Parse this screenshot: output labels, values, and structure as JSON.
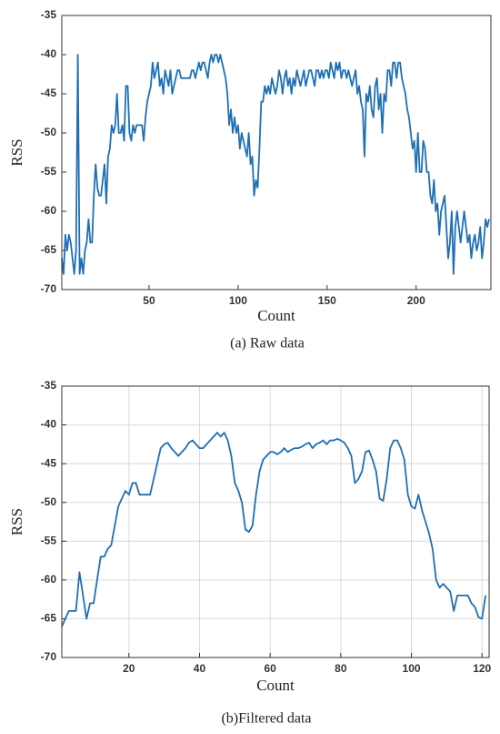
{
  "chart_data": [
    {
      "type": "line",
      "caption": "(a) Raw data",
      "xlabel": "Count",
      "ylabel": "RSS",
      "color": "#1f6fb4",
      "grid": false,
      "xlim": [
        1,
        242
      ],
      "xticks": [
        50,
        100,
        150,
        200
      ],
      "ylim": [
        -70,
        -35
      ],
      "yticks": [
        -70,
        -65,
        -60,
        -55,
        -50,
        -45,
        -40,
        -35
      ],
      "x": [
        1,
        2,
        3,
        4,
        5,
        6,
        7,
        8,
        9,
        10,
        11,
        12,
        13,
        14,
        15,
        16,
        17,
        18,
        19,
        20,
        21,
        22,
        23,
        24,
        25,
        26,
        27,
        28,
        29,
        30,
        31,
        32,
        33,
        34,
        35,
        36,
        37,
        38,
        39,
        40,
        41,
        42,
        43,
        44,
        45,
        46,
        47,
        48,
        49,
        50,
        51,
        52,
        53,
        54,
        55,
        56,
        57,
        58,
        59,
        60,
        61,
        62,
        63,
        64,
        65,
        66,
        67,
        68,
        69,
        70,
        71,
        72,
        73,
        74,
        75,
        76,
        77,
        78,
        79,
        80,
        81,
        82,
        83,
        84,
        85,
        86,
        87,
        88,
        89,
        90,
        91,
        92,
        93,
        94,
        95,
        96,
        97,
        98,
        99,
        100,
        101,
        102,
        103,
        104,
        105,
        106,
        107,
        108,
        109,
        110,
        111,
        112,
        113,
        114,
        115,
        116,
        117,
        118,
        119,
        120,
        121,
        122,
        123,
        124,
        125,
        126,
        127,
        128,
        129,
        130,
        131,
        132,
        133,
        134,
        135,
        136,
        137,
        138,
        139,
        140,
        141,
        142,
        143,
        144,
        145,
        146,
        147,
        148,
        149,
        150,
        151,
        152,
        153,
        154,
        155,
        156,
        157,
        158,
        159,
        160,
        161,
        162,
        163,
        164,
        165,
        166,
        167,
        168,
        169,
        170,
        171,
        172,
        173,
        174,
        175,
        176,
        177,
        178,
        179,
        180,
        181,
        182,
        183,
        184,
        185,
        186,
        187,
        188,
        189,
        190,
        191,
        192,
        193,
        194,
        195,
        196,
        197,
        198,
        199,
        200,
        201,
        202,
        203,
        204,
        205,
        206,
        207,
        208,
        209,
        210,
        211,
        212,
        213,
        214,
        215,
        216,
        217,
        218,
        219,
        220,
        221,
        222,
        223,
        224,
        225,
        226,
        227,
        228,
        229,
        230,
        231,
        232,
        233,
        234,
        235,
        236,
        237,
        238,
        239,
        240,
        241
      ],
      "values": [
        -66,
        -68,
        -63,
        -65,
        -63,
        -64,
        -66,
        -68,
        -65,
        -40,
        -68,
        -66,
        -68,
        -65,
        -64,
        -61,
        -64,
        -64,
        -58,
        -54,
        -57,
        -58,
        -58,
        -56,
        -54,
        -59,
        -53,
        -52,
        -49,
        -50,
        -49,
        -45,
        -50,
        -50,
        -49,
        -51,
        -44,
        -44,
        -50,
        -51,
        -49,
        -50,
        -49,
        -49,
        -49,
        -49,
        -51,
        -48,
        -46,
        -45,
        -44,
        -41,
        -43,
        -42,
        -41,
        -44,
        -43,
        -45,
        -42,
        -43,
        -44,
        -42,
        -45,
        -44,
        -43,
        -42,
        -42,
        -43,
        -43,
        -43,
        -43,
        -43,
        -43,
        -42,
        -42,
        -43,
        -42,
        -41,
        -42,
        -41,
        -41,
        -42,
        -43,
        -41,
        -40,
        -41,
        -40,
        -40,
        -41,
        -40,
        -41,
        -42,
        -43,
        -45,
        -49,
        -47,
        -50,
        -48,
        -50,
        -49,
        -52,
        -50,
        -51,
        -52,
        -53,
        -50,
        -54,
        -53,
        -58,
        -56,
        -57,
        -52,
        -46,
        -46,
        -44,
        -45,
        -44,
        -45,
        -43,
        -44,
        -45,
        -44,
        -42,
        -43,
        -45,
        -43,
        -42,
        -44,
        -43,
        -45,
        -43,
        -44,
        -42,
        -43,
        -44,
        -43,
        -42,
        -44,
        -43,
        -42,
        -42,
        -43,
        -44,
        -42,
        -42,
        -43,
        -42,
        -43,
        -42,
        -42,
        -43,
        -41,
        -42,
        -43,
        -41,
        -42,
        -41,
        -43,
        -42,
        -42,
        -43,
        -42,
        -43,
        -44,
        -43,
        -42,
        -45,
        -44,
        -46,
        -47,
        -53,
        -45,
        -46,
        -44,
        -47,
        -48,
        -44,
        -43,
        -47,
        -45,
        -50,
        -45,
        -46,
        -42,
        -42,
        -44,
        -41,
        -41,
        -43,
        -41,
        -41,
        -43,
        -44,
        -45,
        -47,
        -48,
        -50,
        -52,
        -51,
        -55,
        -50,
        -55,
        -55,
        -51,
        -52,
        -55,
        -55,
        -58,
        -59,
        -56,
        -60,
        -59,
        -63,
        -60,
        -59,
        -58,
        -62,
        -66,
        -64,
        -60,
        -68,
        -62,
        -60,
        -62,
        -64,
        -62,
        -60,
        -62,
        -64,
        -63,
        -66,
        -64,
        -63,
        -65,
        -64,
        -62,
        -66,
        -64,
        -61,
        -62,
        -61
      ]
    },
    {
      "type": "line",
      "caption": "(b)Filtered data",
      "xlabel": "Count",
      "ylabel": "RSS",
      "color": "#1f6fb4",
      "grid": true,
      "xlim": [
        1,
        122
      ],
      "xticks": [
        20,
        40,
        60,
        80,
        100,
        120
      ],
      "ylim": [
        -70,
        -35
      ],
      "yticks": [
        -70,
        -65,
        -60,
        -55,
        -50,
        -45,
        -40,
        -35
      ],
      "x": [
        1,
        2,
        3,
        4,
        5,
        6,
        7,
        8,
        9,
        10,
        11,
        12,
        13,
        14,
        15,
        16,
        17,
        18,
        19,
        20,
        21,
        22,
        23,
        24,
        25,
        26,
        27,
        28,
        29,
        30,
        31,
        32,
        33,
        34,
        35,
        36,
        37,
        38,
        39,
        40,
        41,
        42,
        43,
        44,
        45,
        46,
        47,
        48,
        49,
        50,
        51,
        52,
        53,
        54,
        55,
        56,
        57,
        58,
        59,
        60,
        61,
        62,
        63,
        64,
        65,
        66,
        67,
        68,
        69,
        70,
        71,
        72,
        73,
        74,
        75,
        76,
        77,
        78,
        79,
        80,
        81,
        82,
        83,
        84,
        85,
        86,
        87,
        88,
        89,
        90,
        91,
        92,
        93,
        94,
        95,
        96,
        97,
        98,
        99,
        100,
        101,
        102,
        103,
        104,
        105,
        106,
        107,
        108,
        109,
        110,
        111,
        112,
        113,
        114,
        115,
        116,
        117,
        118,
        119,
        120,
        121
      ],
      "values": [
        -66,
        -65,
        -64,
        -64,
        -64,
        -59,
        -62,
        -65,
        -63,
        -63,
        -60,
        -57,
        -57,
        -56,
        -55.5,
        -53,
        -50.5,
        -49.5,
        -48.5,
        -49,
        -47.5,
        -47.5,
        -49,
        -49,
        -49,
        -49,
        -47,
        -45,
        -43,
        -42.5,
        -42.3,
        -43,
        -43.5,
        -44,
        -43.5,
        -43,
        -42.3,
        -42,
        -42.5,
        -43,
        -43,
        -42.5,
        -42,
        -41.5,
        -41,
        -41.5,
        -41,
        -42,
        -44,
        -47.5,
        -48.5,
        -50,
        -53.5,
        -53.8,
        -53,
        -49,
        -46,
        -44.5,
        -44,
        -43.5,
        -43.5,
        -43.8,
        -43.5,
        -43,
        -43.5,
        -43.2,
        -43,
        -43,
        -42.8,
        -42.5,
        -42.3,
        -43,
        -42.5,
        -42.3,
        -42,
        -42.5,
        -42,
        -42,
        -41.8,
        -42,
        -42.3,
        -43,
        -44,
        -47.5,
        -47,
        -46,
        -43.5,
        -43.3,
        -44.5,
        -46,
        -49.5,
        -49.8,
        -47,
        -43,
        -42,
        -42,
        -43,
        -44.5,
        -49,
        -50.5,
        -50.8,
        -49,
        -51,
        -52.5,
        -54,
        -56,
        -60,
        -61,
        -60.5,
        -61,
        -61.5,
        -64,
        -62,
        -62,
        -62,
        -62,
        -63,
        -63.5,
        -64.8,
        -65,
        -62
      ]
    }
  ]
}
